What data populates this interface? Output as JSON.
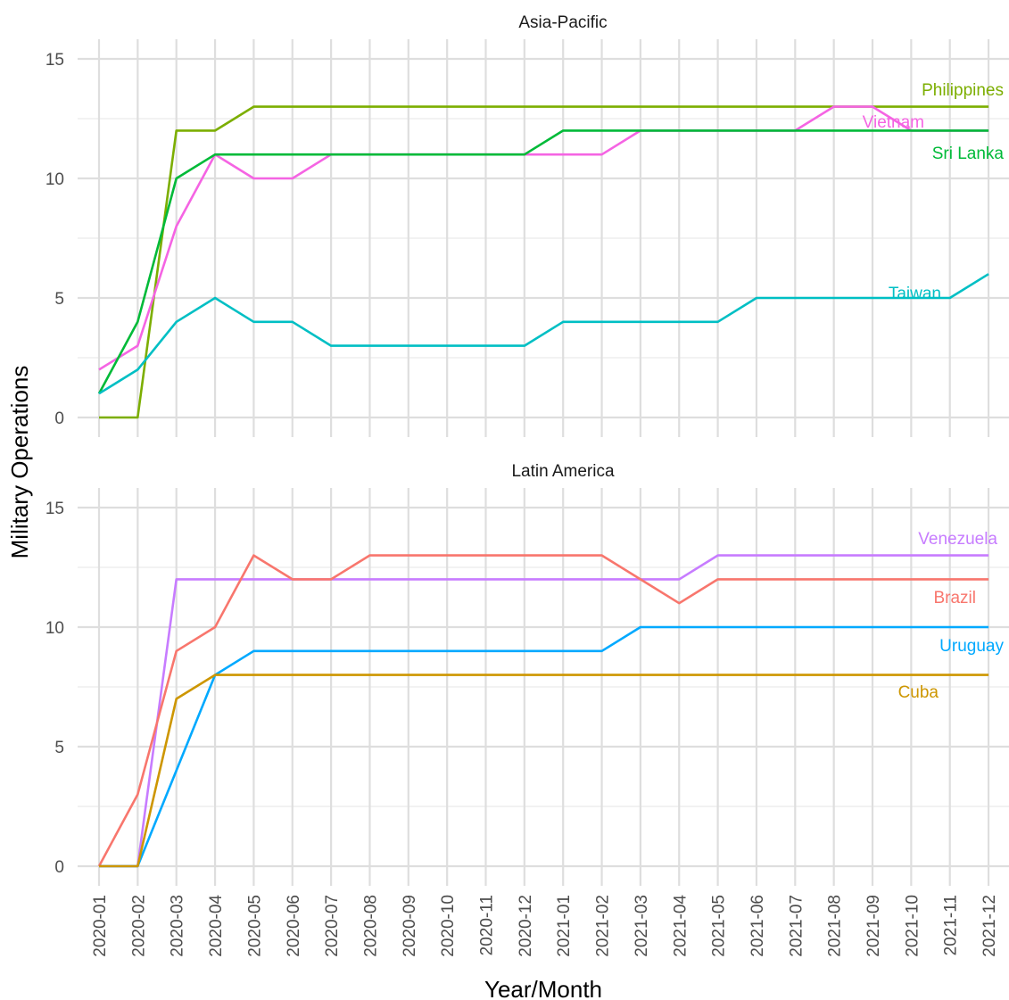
{
  "chart_data": {
    "type": "line",
    "xlabel": "Year/Month",
    "ylabel": "Military Operations",
    "x": [
      "2020-01",
      "2020-02",
      "2020-03",
      "2020-04",
      "2020-05",
      "2020-06",
      "2020-07",
      "2020-08",
      "2020-09",
      "2020-10",
      "2020-11",
      "2020-12",
      "2021-01",
      "2021-02",
      "2021-03",
      "2021-04",
      "2021-05",
      "2021-06",
      "2021-07",
      "2021-08",
      "2021-09",
      "2021-10",
      "2021-11",
      "2021-12"
    ],
    "ylim": [
      0,
      15
    ],
    "yticks": [
      0,
      5,
      10,
      15
    ],
    "grid": true,
    "panels": [
      {
        "title": "Asia-Pacific",
        "series": [
          {
            "name": "Philippines",
            "color": "#7CAE00",
            "values": [
              0,
              0,
              12,
              12,
              13,
              13,
              13,
              13,
              13,
              13,
              13,
              13,
              13,
              13,
              13,
              13,
              13,
              13,
              13,
              13,
              13,
              13,
              13,
              13
            ]
          },
          {
            "name": "Vietnam",
            "color": "#F564E3",
            "values": [
              2,
              3,
              8,
              11,
              10,
              10,
              11,
              11,
              11,
              11,
              11,
              11,
              11,
              11,
              12,
              12,
              12,
              12,
              12,
              13,
              13,
              12,
              12,
              12
            ]
          },
          {
            "name": "Sri Lanka",
            "color": "#00BA38",
            "values": [
              1,
              4,
              10,
              11,
              11,
              11,
              11,
              11,
              11,
              11,
              11,
              11,
              12,
              12,
              12,
              12,
              12,
              12,
              12,
              12,
              12,
              12,
              12,
              12
            ]
          },
          {
            "name": "Taiwan",
            "color": "#00BFC4",
            "values": [
              1,
              2,
              4,
              5,
              4,
              4,
              3,
              3,
              3,
              3,
              3,
              3,
              4,
              4,
              4,
              4,
              4,
              5,
              5,
              5,
              5,
              5,
              5,
              6
            ]
          }
        ]
      },
      {
        "title": "Latin America",
        "series": [
          {
            "name": "Venezuela",
            "color": "#C77CFF",
            "values": [
              0,
              0,
              12,
              12,
              12,
              12,
              12,
              12,
              12,
              12,
              12,
              12,
              12,
              12,
              12,
              12,
              13,
              13,
              13,
              13,
              13,
              13,
              13,
              13
            ]
          },
          {
            "name": "Brazil",
            "color": "#F8766D",
            "values": [
              0,
              3,
              9,
              10,
              13,
              12,
              12,
              13,
              13,
              13,
              13,
              13,
              13,
              13,
              12,
              11,
              12,
              12,
              12,
              12,
              12,
              12,
              12,
              12
            ]
          },
          {
            "name": "Uruguay",
            "color": "#00A9FF",
            "values": [
              0,
              0,
              4,
              8,
              9,
              9,
              9,
              9,
              9,
              9,
              9,
              9,
              9,
              9,
              10,
              10,
              10,
              10,
              10,
              10,
              10,
              10,
              10,
              10
            ]
          },
          {
            "name": "Cuba",
            "color": "#CD9600",
            "values": [
              0,
              0,
              7,
              8,
              8,
              8,
              8,
              8,
              8,
              8,
              8,
              8,
              8,
              8,
              8,
              8,
              8,
              8,
              8,
              8,
              8,
              8,
              8,
              8
            ]
          }
        ]
      }
    ]
  }
}
